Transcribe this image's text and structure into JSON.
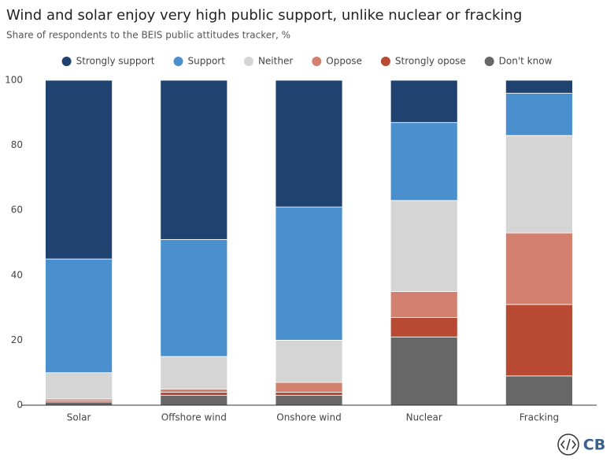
{
  "chart_data": {
    "type": "stacked_bar",
    "title": "Wind and solar enjoy very high public support, unlike nuclear or fracking",
    "subtitle": "Share of respondents to the BEIS public attitudes tracker, %",
    "categories": [
      "Solar",
      "Offshore wind",
      "Onshore wind",
      "Nuclear",
      "Fracking"
    ],
    "series": [
      {
        "name": "Don't know",
        "color": "#676767",
        "values": [
          1,
          3,
          3,
          21,
          9
        ]
      },
      {
        "name": "Strongly opose",
        "color": "#b84a33",
        "values": [
          0.5,
          1,
          1,
          6,
          22
        ]
      },
      {
        "name": "Oppose",
        "color": "#d4806f",
        "values": [
          0.5,
          1,
          3,
          8,
          22
        ]
      },
      {
        "name": "Neither",
        "color": "#d5d5d5",
        "values": [
          8,
          10,
          13,
          28,
          30
        ]
      },
      {
        "name": "Support",
        "color": "#4a8fce",
        "values": [
          35,
          36,
          41,
          24,
          13
        ]
      },
      {
        "name": "Strongly support",
        "color": "#1f4271",
        "values": [
          55,
          49,
          39,
          13,
          4
        ]
      }
    ],
    "ylim": [
      0,
      100
    ],
    "yticks": [
      0,
      20,
      40,
      60,
      80,
      100
    ],
    "logo": "CB"
  }
}
